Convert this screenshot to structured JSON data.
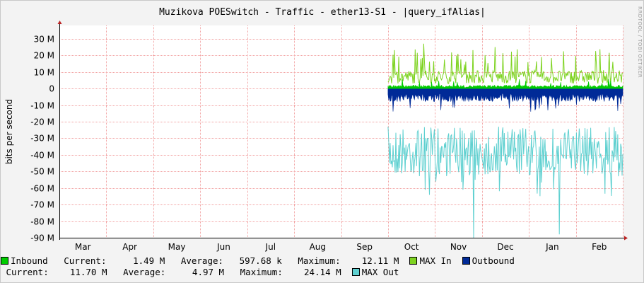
{
  "chart_data": {
    "type": "area",
    "title": "Muzikova POESwitch - Traffic - ether13-S1 - |query_ifAlias|",
    "ylabel": "bits per second",
    "watermark": "RRDTOOL / TOBI OETIKER",
    "y_ticks": [
      "30 M",
      "20 M",
      "10 M",
      "0",
      "-10 M",
      "-20 M",
      "-30 M",
      "-40 M",
      "-50 M",
      "-60 M",
      "-70 M",
      "-80 M",
      "-90 M"
    ],
    "y_tick_values": [
      30,
      20,
      10,
      0,
      -10,
      -20,
      -30,
      -40,
      -50,
      -60,
      -70,
      -80,
      -90
    ],
    "ylim": [
      -90,
      38
    ],
    "x_ticks": [
      "Mar",
      "Apr",
      "May",
      "Jun",
      "Jul",
      "Aug",
      "Sep",
      "Oct",
      "Nov",
      "Dec",
      "Jan",
      "Feb"
    ],
    "x_range_months": [
      0,
      12.0
    ],
    "data_start_month": 7.0,
    "unit": "M bits per second",
    "series": [
      {
        "name": "Inbound",
        "color": "#00cc00",
        "kind": "area",
        "direction": "up",
        "typical": 1.5,
        "max": 12.11
      },
      {
        "name": "MAX In",
        "color": "#7ed321",
        "kind": "line",
        "direction": "up",
        "typical": 8,
        "max": 27
      },
      {
        "name": "Outbound",
        "color": "#002a97",
        "kind": "area",
        "direction": "down",
        "typical": 5,
        "max": 24.14
      },
      {
        "name": "MAX Out",
        "color": "#5ed0d0",
        "kind": "line",
        "direction": "down",
        "typical": 38,
        "max": 90
      }
    ]
  },
  "legend": {
    "row1": [
      {
        "name": "Inbound",
        "color": "#00cc00"
      },
      {
        "text": "   Current:     1.49 M   Average:   597.68 k   Maximum:    12.11 M  "
      },
      {
        "name": "MAX In",
        "color": "#7ed321"
      },
      {
        "text": "  "
      },
      {
        "name": "Outbound",
        "color": "#002a97"
      }
    ],
    "row2": [
      {
        "text": " Current:    11.70 M   Average:     4.97 M   Maximum:    24.14 M  "
      },
      {
        "name": "MAX Out",
        "color": "#5ed0d0"
      }
    ]
  }
}
